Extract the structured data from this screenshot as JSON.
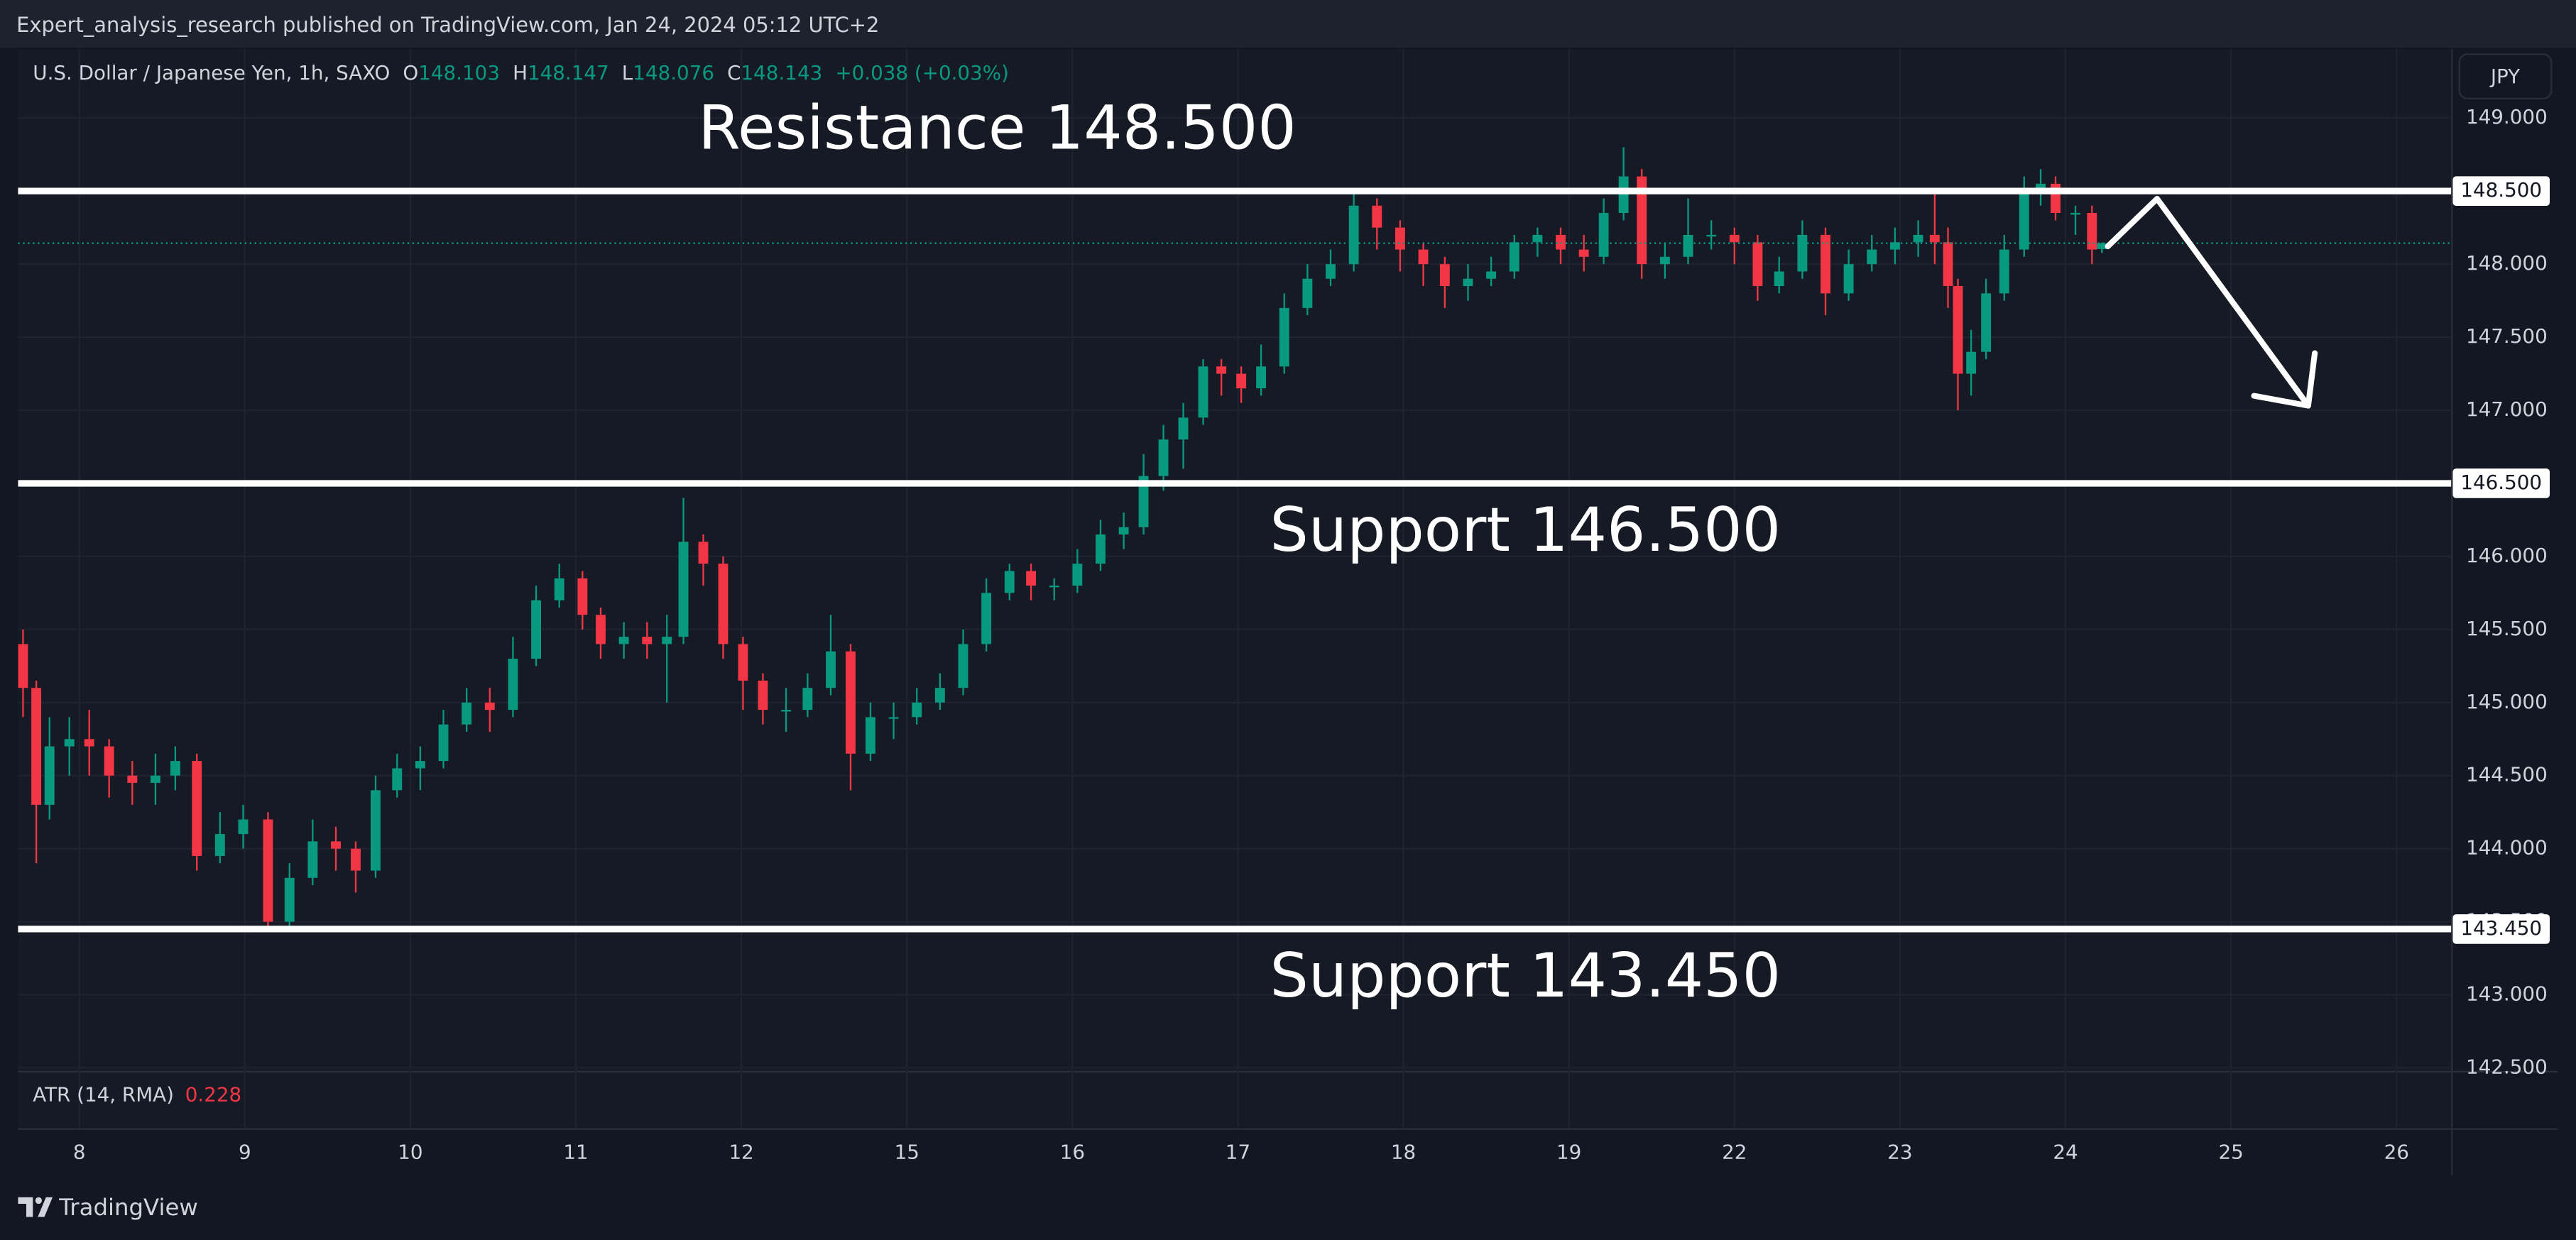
{
  "header": {
    "published": "Expert_analysis_research published on TradingView.com, Jan 24, 2024 05:12 UTC+2"
  },
  "brand": "TradingView",
  "chart_data": {
    "type": "candlestick",
    "title": "U.S. Dollar / Japanese Yen, 1h, SAXO",
    "legend": {
      "o_label": "O",
      "open": 148.103,
      "h_label": "H",
      "high": 148.147,
      "l_label": "L",
      "low": 148.076,
      "c_label": "C",
      "close": 148.143,
      "change": "+0.038 (+0.03%)"
    },
    "currency": "JPY",
    "indicator": {
      "name": "ATR (14, RMA)",
      "value": 0.228
    },
    "up_color": "#089981",
    "down_color": "#f23645",
    "grid": true,
    "xlim": [
      -0.37,
      14.33
    ],
    "ylim": [
      142.48,
      149.47
    ],
    "xticks": [
      {
        "value": 0,
        "label": "8"
      },
      {
        "value": 1,
        "label": "9"
      },
      {
        "value": 2,
        "label": "10"
      },
      {
        "value": 3,
        "label": "11"
      },
      {
        "value": 4,
        "label": "12"
      },
      {
        "value": 5,
        "label": "15"
      },
      {
        "value": 6,
        "label": "16"
      },
      {
        "value": 7,
        "label": "17"
      },
      {
        "value": 8,
        "label": "18"
      },
      {
        "value": 9,
        "label": "19"
      },
      {
        "value": 10,
        "label": "22"
      },
      {
        "value": 11,
        "label": "23"
      },
      {
        "value": 12,
        "label": "24"
      },
      {
        "value": 13,
        "label": "25"
      },
      {
        "value": 14,
        "label": "26"
      }
    ],
    "yticks": [
      {
        "value": 149,
        "label": "149.000"
      },
      {
        "value": 148.5,
        "label": "148.500"
      },
      {
        "value": 148,
        "label": "148.000"
      },
      {
        "value": 147.5,
        "label": "147.500"
      },
      {
        "value": 147,
        "label": "147.000"
      },
      {
        "value": 146.5,
        "label": "146.500"
      },
      {
        "value": 146,
        "label": "146.000"
      },
      {
        "value": 145.5,
        "label": "145.500"
      },
      {
        "value": 145,
        "label": "145.000"
      },
      {
        "value": 144.5,
        "label": "144.500"
      },
      {
        "value": 144,
        "label": "144.000"
      },
      {
        "value": 143.5,
        "label": "143.500"
      },
      {
        "value": 143,
        "label": "143.000"
      },
      {
        "value": 142.5,
        "label": "142.500"
      }
    ],
    "levels": [
      {
        "value": 148.5,
        "label": "148.500",
        "text": "Resistance 148.500"
      },
      {
        "value": 146.5,
        "label": "146.500",
        "text": "Support 146.500"
      },
      {
        "value": 143.45,
        "label": "143.450",
        "text": "Support 143.450"
      }
    ],
    "x": [
      -0.34,
      -0.26,
      -0.18,
      -0.06,
      0.06,
      0.18,
      0.32,
      0.46,
      0.58,
      0.71,
      0.85,
      0.99,
      1.14,
      1.27,
      1.41,
      1.55,
      1.67,
      1.79,
      1.92,
      2.06,
      2.2,
      2.34,
      2.48,
      2.62,
      2.76,
      2.9,
      3.04,
      3.15,
      3.29,
      3.43,
      3.55,
      3.65,
      3.77,
      3.89,
      4.01,
      4.13,
      4.27,
      4.4,
      4.54,
      4.66,
      4.78,
      4.92,
      5.06,
      5.2,
      5.34,
      5.48,
      5.62,
      5.75,
      5.89,
      6.03,
      6.17,
      6.31,
      6.43,
      6.55,
      6.67,
      6.79,
      6.9,
      7.02,
      7.14,
      7.28,
      7.42,
      7.56,
      7.7,
      7.84,
      7.98,
      8.12,
      8.25,
      8.39,
      8.53,
      8.67,
      8.81,
      8.95,
      9.09,
      9.21,
      9.33,
      9.44,
      9.58,
      9.72,
      9.86,
      10.0,
      10.14,
      10.27,
      10.41,
      10.55,
      10.69,
      10.83,
      10.97,
      11.11,
      11.21,
      11.29,
      11.35,
      11.43,
      11.52,
      11.63,
      11.75,
      11.85,
      11.94,
      12.06,
      12.16,
      12.22
    ],
    "open": [
      145.4,
      145.1,
      144.3,
      144.7,
      144.75,
      144.7,
      144.5,
      144.45,
      144.5,
      144.6,
      143.95,
      144.1,
      144.2,
      143.5,
      143.8,
      144.05,
      144.0,
      143.85,
      144.4,
      144.55,
      144.6,
      144.85,
      145.0,
      144.95,
      145.3,
      145.7,
      145.85,
      145.6,
      145.4,
      145.45,
      145.4,
      145.45,
      146.1,
      145.95,
      145.4,
      145.15,
      144.95,
      144.95,
      145.1,
      145.35,
      144.65,
      144.9,
      144.9,
      145.0,
      145.1,
      145.4,
      145.75,
      145.9,
      145.8,
      145.8,
      145.95,
      146.15,
      146.2,
      146.55,
      146.8,
      146.95,
      147.3,
      147.25,
      147.15,
      147.3,
      147.7,
      147.9,
      148.0,
      148.4,
      148.25,
      148.1,
      148.0,
      147.85,
      147.9,
      147.95,
      148.15,
      148.2,
      148.1,
      148.05,
      148.35,
      148.6,
      148.0,
      148.05,
      148.2,
      148.2,
      148.15,
      147.85,
      147.95,
      148.2,
      147.8,
      148.0,
      148.1,
      148.15,
      148.2,
      148.15,
      147.85,
      147.25,
      147.4,
      147.8,
      148.1,
      148.5,
      148.55,
      148.35,
      148.35,
      148.103
    ],
    "high": [
      145.5,
      145.15,
      144.9,
      144.9,
      144.95,
      144.75,
      144.6,
      144.65,
      144.7,
      144.65,
      144.25,
      144.3,
      144.25,
      143.9,
      144.2,
      144.15,
      144.05,
      144.5,
      144.65,
      144.7,
      144.95,
      145.1,
      145.1,
      145.45,
      145.8,
      145.95,
      145.9,
      145.65,
      145.55,
      145.55,
      145.6,
      146.4,
      146.15,
      146.0,
      145.45,
      145.2,
      145.1,
      145.2,
      145.6,
      145.4,
      145.0,
      145.0,
      145.1,
      145.2,
      145.5,
      145.85,
      145.95,
      145.95,
      145.85,
      146.05,
      146.25,
      146.3,
      146.7,
      146.9,
      147.05,
      147.35,
      147.35,
      147.3,
      147.45,
      147.8,
      148.0,
      148.1,
      148.5,
      148.45,
      148.3,
      148.15,
      148.05,
      148.0,
      148.05,
      148.2,
      148.25,
      148.25,
      148.2,
      148.45,
      148.8,
      148.65,
      148.15,
      148.45,
      148.3,
      148.25,
      148.2,
      148.05,
      148.3,
      148.25,
      148.1,
      148.2,
      148.25,
      148.3,
      148.5,
      148.25,
      147.9,
      147.55,
      147.9,
      148.2,
      148.6,
      148.65,
      148.6,
      148.4,
      148.4,
      148.147
    ],
    "low": [
      144.9,
      143.9,
      144.2,
      144.5,
      144.5,
      144.35,
      144.3,
      144.3,
      144.4,
      143.85,
      143.9,
      144.0,
      143.45,
      143.45,
      143.75,
      143.85,
      143.7,
      143.8,
      144.35,
      144.4,
      144.55,
      144.8,
      144.8,
      144.9,
      145.25,
      145.65,
      145.5,
      145.3,
      145.3,
      145.3,
      145.0,
      145.4,
      145.8,
      145.3,
      144.95,
      144.85,
      144.8,
      144.9,
      145.05,
      144.4,
      144.6,
      144.75,
      144.85,
      144.95,
      145.05,
      145.35,
      145.7,
      145.7,
      145.7,
      145.75,
      145.9,
      146.05,
      146.15,
      146.45,
      146.6,
      146.9,
      147.1,
      147.05,
      147.1,
      147.25,
      147.65,
      147.85,
      147.95,
      148.1,
      147.95,
      147.85,
      147.7,
      147.75,
      147.85,
      147.9,
      148.05,
      148.0,
      147.95,
      148.0,
      148.3,
      147.9,
      147.9,
      148.0,
      148.1,
      148.0,
      147.75,
      147.8,
      147.9,
      147.65,
      147.75,
      147.95,
      148.0,
      148.05,
      148.0,
      147.7,
      147.0,
      147.1,
      147.35,
      147.75,
      148.05,
      148.4,
      148.3,
      148.2,
      148.0,
      148.076
    ],
    "close": [
      145.1,
      144.3,
      144.7,
      144.75,
      144.7,
      144.5,
      144.45,
      144.5,
      144.6,
      143.95,
      144.1,
      144.2,
      143.5,
      143.8,
      144.05,
      144.0,
      143.85,
      144.4,
      144.55,
      144.6,
      144.85,
      145.0,
      144.95,
      145.3,
      145.7,
      145.85,
      145.6,
      145.4,
      145.45,
      145.4,
      145.45,
      146.1,
      145.95,
      145.4,
      145.15,
      144.95,
      144.95,
      145.1,
      145.35,
      144.65,
      144.9,
      144.9,
      145.0,
      145.1,
      145.4,
      145.75,
      145.9,
      145.8,
      145.8,
      145.95,
      146.15,
      146.2,
      146.55,
      146.8,
      146.95,
      147.3,
      147.25,
      147.15,
      147.3,
      147.7,
      147.9,
      148.0,
      148.4,
      148.25,
      148.1,
      148.0,
      147.85,
      147.9,
      147.95,
      148.15,
      148.2,
      148.1,
      148.05,
      148.35,
      148.6,
      148.0,
      148.05,
      148.2,
      148.2,
      148.15,
      147.85,
      147.95,
      148.2,
      147.8,
      148.0,
      148.1,
      148.15,
      148.2,
      148.15,
      147.85,
      147.25,
      147.4,
      147.8,
      148.1,
      148.5,
      148.55,
      148.35,
      148.35,
      148.1,
      148.143
    ]
  }
}
